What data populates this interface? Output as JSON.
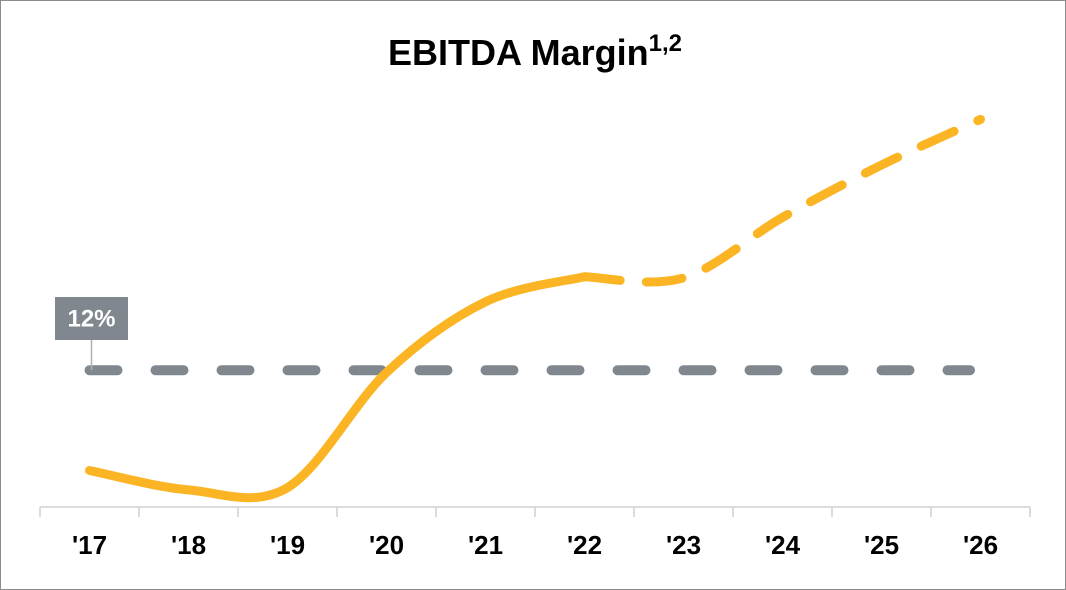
{
  "chart_data": {
    "type": "line",
    "title": "EBITDA Margin",
    "title_superscript": "1,2",
    "categories": [
      "'17",
      "'18",
      "'19",
      "'20",
      "'21",
      "'22",
      "'23",
      "'24",
      "'25",
      "'26"
    ],
    "series": [
      {
        "color": "#fbb524",
        "dash": false,
        "values": [
          3.2,
          1.5,
          1.7,
          11.8,
          18.0,
          20.2,
          null,
          null,
          null,
          null
        ]
      },
      {
        "color": "#fbb524",
        "dash": true,
        "values": [
          null,
          null,
          null,
          null,
          null,
          20.2,
          20.1,
          25.4,
          30.0,
          34.0
        ]
      }
    ],
    "reference_line": {
      "value": 12,
      "label": "12%",
      "color": "#80878e",
      "dash": true
    },
    "ylim": [
      0,
      40
    ],
    "smooth": true
  }
}
